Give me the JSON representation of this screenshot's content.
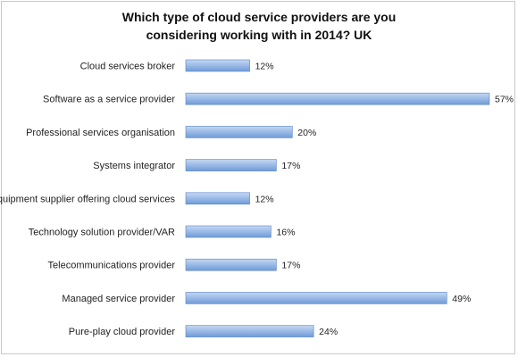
{
  "chart_data": {
    "type": "bar",
    "orientation": "horizontal",
    "title_lines": [
      "Which type of cloud service providers are you",
      "considering working with in 2014? UK"
    ],
    "categories": [
      "Cloud services broker",
      "Software as a service provider",
      "Professional services organisation",
      "Systems integrator",
      "Equipment supplier offering cloud services",
      "Technology solution provider/VAR",
      "Telecommunications provider",
      "Managed service provider",
      "Pure-play cloud provider"
    ],
    "values": [
      12,
      57,
      20,
      17,
      12,
      16,
      17,
      49,
      24
    ],
    "value_labels": [
      "12%",
      "57%",
      "20%",
      "17%",
      "12%",
      "16%",
      "17%",
      "49%",
      "24%"
    ],
    "unit": "%",
    "xlim": [
      0,
      57
    ],
    "grid": false,
    "legend": "none",
    "colors": {
      "bar_light": "#c4d8f3",
      "bar_dark": "#6f9bd8",
      "bar_edge": "#5b86c4"
    }
  }
}
